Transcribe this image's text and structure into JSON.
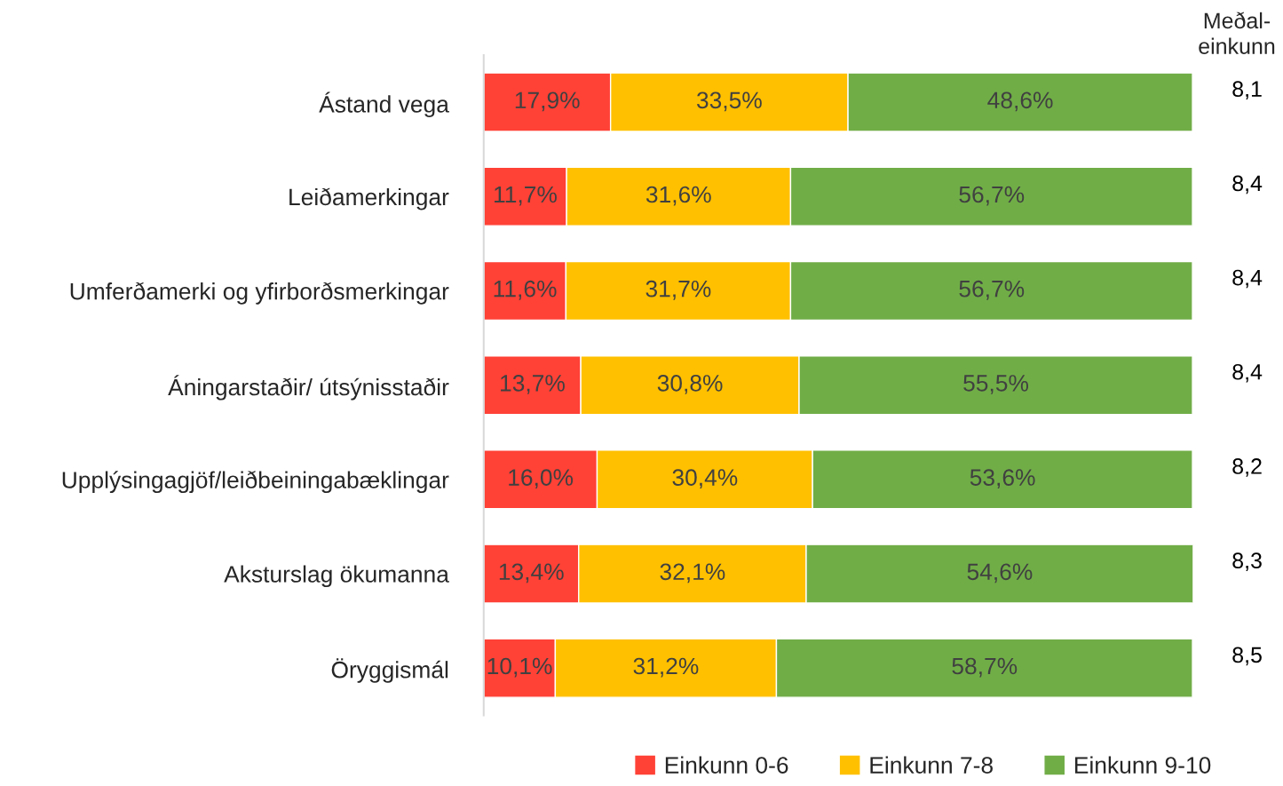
{
  "chart_data": {
    "type": "bar",
    "orientation": "horizontal",
    "stacked": true,
    "data_labels": true,
    "legend": "bottom",
    "categories": [
      "Ástand vega",
      "Leiðamerkingar",
      "Umferðamerki og yfirborðsmerkingar",
      "Áningarstaðir/ útsýnisstaðir",
      "Upplýsingagjöf/leiðbeiningabæklingar",
      "Aksturslag ökumanna",
      "Öryggismál"
    ],
    "series": [
      {
        "name": "Einkunn 0-6",
        "color": "#ff4136",
        "values": [
          17.9,
          11.7,
          11.6,
          13.7,
          16.0,
          13.4,
          10.1
        ],
        "value_labels": [
          "17,9%",
          "11,7%",
          "11,6%",
          "13,7%",
          "16,0%",
          "13,4%",
          "10,1%"
        ]
      },
      {
        "name": "Einkunn 7-8",
        "color": "#ffc000",
        "values": [
          33.5,
          31.6,
          31.7,
          30.8,
          30.4,
          32.1,
          31.2
        ],
        "value_labels": [
          "33,5%",
          "31,6%",
          "31,7%",
          "30,8%",
          "30,4%",
          "32,1%",
          "31,2%"
        ]
      },
      {
        "name": "Einkunn 9-10",
        "color": "#70ad47",
        "values": [
          48.6,
          56.7,
          56.7,
          55.5,
          53.6,
          54.6,
          58.7
        ],
        "value_labels": [
          "48,6%",
          "56,7%",
          "56,7%",
          "55,5%",
          "53,6%",
          "54,6%",
          "58,7%"
        ]
      }
    ],
    "annotations": [
      "Meðal-\neinkunn",
      "8,1",
      "8,4",
      "8,4",
      "8,4",
      "8,2",
      "8,3",
      "8,5"
    ]
  }
}
